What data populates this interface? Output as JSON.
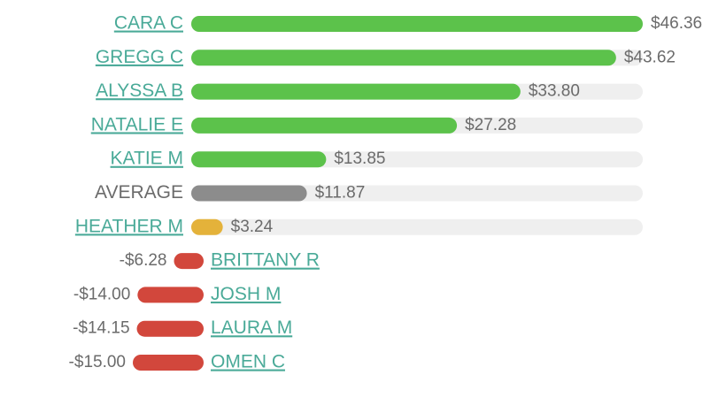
{
  "chart_data": {
    "type": "bar",
    "categories": [
      "CARA C",
      "GREGG C",
      "ALYSSA B",
      "NATALIE E",
      "KATIE M",
      "AVERAGE",
      "HEATHER M",
      "BRITTANY R",
      "JOSH M",
      "LAURA M",
      "OMEN C"
    ],
    "values": [
      46.36,
      43.62,
      33.8,
      27.28,
      13.85,
      11.87,
      3.24,
      -6.28,
      -14.0,
      -14.15,
      -15.0
    ],
    "value_labels": [
      "$46.36",
      "$43.62",
      "$33.80",
      "$27.28",
      "$13.85",
      "$11.87",
      "$3.24",
      "-$6.28",
      "-$14.00",
      "-$14.15",
      "-$15.00"
    ],
    "colors": [
      "#5cc24b",
      "#5cc24b",
      "#5cc24b",
      "#5cc24b",
      "#5cc24b",
      "#8c8c8c",
      "#e4b23a",
      "#d2473c",
      "#d2473c",
      "#d2473c",
      "#d2473c"
    ],
    "label_colors": [
      "#4aaa98",
      "#4aaa98",
      "#4aaa98",
      "#4aaa98",
      "#4aaa98",
      "#6b6b6b",
      "#4aaa98",
      "#4aaa98",
      "#4aaa98",
      "#4aaa98",
      "#4aaa98"
    ],
    "track_color": "#efefef"
  }
}
